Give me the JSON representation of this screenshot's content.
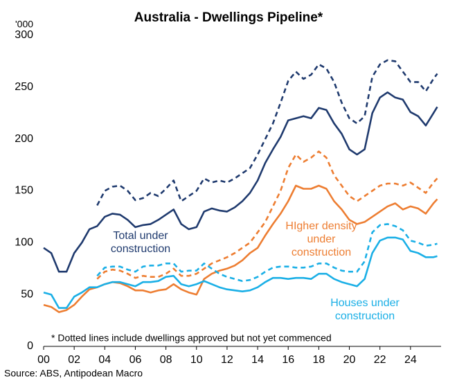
{
  "chart_data": {
    "type": "line",
    "title": "Australia - Dwellings Pipeline*",
    "y_unit": "'000",
    "footnote": "* Dotted lines include dwellings approved but not yet commenced",
    "source": "Source: ABS, Antipodean Macro",
    "x": [
      2000,
      2000.5,
      2001,
      2001.5,
      2002,
      2002.5,
      2003,
      2003.5,
      2004,
      2004.5,
      2005,
      2005.5,
      2006,
      2006.5,
      2007,
      2007.5,
      2008,
      2008.5,
      2009,
      2009.5,
      2010,
      2010.5,
      2011,
      2011.5,
      2012,
      2012.5,
      2013,
      2013.5,
      2014,
      2014.5,
      2015,
      2015.5,
      2016,
      2016.5,
      2017,
      2017.5,
      2018,
      2018.5,
      2019,
      2019.5,
      2020,
      2020.5,
      2021,
      2021.5,
      2022,
      2022.5,
      2023,
      2023.5,
      2024,
      2024.5,
      2025,
      2025.5,
      2025.75
    ],
    "xlim": [
      2000,
      2026
    ],
    "xticks": [
      {
        "value": 2000,
        "label": "00"
      },
      {
        "value": 2002,
        "label": "02"
      },
      {
        "value": 2004,
        "label": "04"
      },
      {
        "value": 2006,
        "label": "06"
      },
      {
        "value": 2008,
        "label": "08"
      },
      {
        "value": 2010,
        "label": "10"
      },
      {
        "value": 2012,
        "label": "12"
      },
      {
        "value": 2014,
        "label": "14"
      },
      {
        "value": 2016,
        "label": "16"
      },
      {
        "value": 2018,
        "label": "18"
      },
      {
        "value": 2020,
        "label": "20"
      },
      {
        "value": 2022,
        "label": "22"
      },
      {
        "value": 2024,
        "label": "24"
      }
    ],
    "ylim": [
      0,
      300
    ],
    "yticks": [
      0,
      50,
      100,
      150,
      200,
      250,
      300
    ],
    "grid": false,
    "series": [
      {
        "name": "Total under construction",
        "color": "#1f3a6e",
        "dashed": false,
        "values": [
          95,
          90,
          72,
          72,
          90,
          100,
          113,
          116,
          125,
          128,
          127,
          122,
          115,
          117,
          118,
          122,
          127,
          132,
          118,
          113,
          115,
          130,
          133,
          131,
          130,
          134,
          140,
          148,
          160,
          177,
          190,
          202,
          218,
          220,
          222,
          220,
          230,
          228,
          215,
          205,
          190,
          185,
          190,
          225,
          240,
          245,
          240,
          238,
          226,
          222,
          213,
          225,
          231
        ]
      },
      {
        "color": "#1f3a6e",
        "dashed": true,
        "values": [
          null,
          null,
          null,
          null,
          null,
          null,
          null,
          136,
          150,
          154,
          155,
          150,
          141,
          143,
          148,
          145,
          152,
          160,
          140,
          145,
          150,
          162,
          158,
          160,
          158,
          162,
          167,
          172,
          185,
          200,
          215,
          235,
          256,
          265,
          258,
          262,
          272,
          268,
          255,
          235,
          220,
          215,
          222,
          260,
          272,
          276,
          275,
          265,
          255,
          255,
          246,
          258,
          263
        ]
      },
      {
        "name": "HIgher density under construction",
        "color": "#ed7d31",
        "dashed": false,
        "values": [
          40,
          38,
          33,
          35,
          40,
          48,
          55,
          57,
          60,
          62,
          61,
          58,
          54,
          54,
          52,
          54,
          55,
          60,
          55,
          52,
          50,
          65,
          70,
          73,
          75,
          78,
          83,
          90,
          95,
          107,
          118,
          128,
          140,
          155,
          152,
          152,
          155,
          152,
          140,
          132,
          122,
          118,
          120,
          125,
          130,
          135,
          138,
          132,
          135,
          133,
          128,
          138,
          142
        ]
      },
      {
        "color": "#ed7d31",
        "dashed": true,
        "values": [
          null,
          null,
          null,
          null,
          null,
          null,
          null,
          65,
          72,
          74,
          73,
          70,
          66,
          68,
          67,
          67,
          70,
          75,
          68,
          68,
          70,
          75,
          80,
          83,
          86,
          90,
          95,
          100,
          110,
          120,
          135,
          150,
          172,
          185,
          178,
          182,
          188,
          182,
          165,
          155,
          145,
          140,
          145,
          150,
          155,
          157,
          157,
          155,
          158,
          153,
          148,
          158,
          162
        ]
      },
      {
        "name": "Houses under construction",
        "color": "#1aafe6",
        "dashed": false,
        "values": [
          52,
          50,
          37,
          37,
          48,
          52,
          57,
          57,
          60,
          62,
          62,
          60,
          58,
          62,
          62,
          63,
          67,
          68,
          60,
          58,
          60,
          63,
          60,
          57,
          55,
          54,
          53,
          54,
          57,
          62,
          66,
          66,
          65,
          66,
          66,
          65,
          70,
          70,
          65,
          62,
          60,
          58,
          65,
          90,
          102,
          105,
          105,
          103,
          92,
          90,
          86,
          86,
          87
        ]
      },
      {
        "color": "#1aafe6",
        "dashed": true,
        "values": [
          null,
          null,
          null,
          null,
          null,
          null,
          null,
          68,
          76,
          77,
          77,
          74,
          72,
          77,
          78,
          78,
          80,
          80,
          72,
          73,
          73,
          80,
          75,
          70,
          67,
          65,
          63,
          64,
          67,
          72,
          76,
          77,
          77,
          76,
          76,
          77,
          80,
          80,
          76,
          73,
          72,
          72,
          82,
          110,
          117,
          118,
          116,
          112,
          102,
          100,
          97,
          98,
          99
        ]
      }
    ]
  }
}
